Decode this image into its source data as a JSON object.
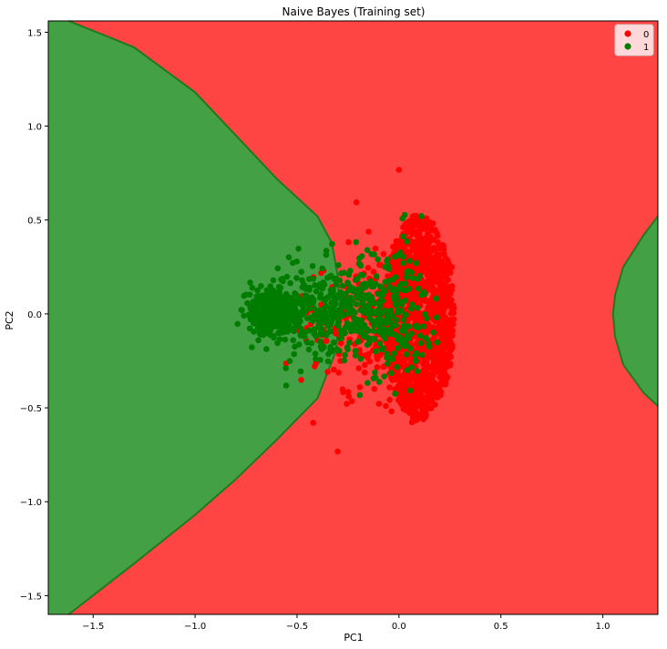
{
  "chart_data": {
    "type": "scatter",
    "title": "Naive Bayes (Training set)",
    "xlabel": "PC1",
    "ylabel": "PC2",
    "xlim": [
      -1.72,
      1.27
    ],
    "ylim": [
      -1.6,
      1.56
    ],
    "xticks": [
      -1.5,
      -1.0,
      -0.5,
      0.0,
      0.5,
      1.0
    ],
    "xtick_labels": [
      "−1.5",
      "−1.0",
      "−0.5",
      "0.0",
      "0.5",
      "1.0"
    ],
    "yticks": [
      -1.5,
      -1.0,
      -0.5,
      0.0,
      0.5,
      1.0,
      1.5
    ],
    "ytick_labels": [
      "−1.5",
      "−1.0",
      "−0.5",
      "0.0",
      "0.5",
      "1.0",
      "1.5"
    ],
    "grid": false,
    "legend_position": "top-right",
    "background_regions": {
      "class_0_color": "#ff4444",
      "class_1_color": "#44a044",
      "boundary_color": "#1f7a1f",
      "left_boundary": [
        [
          -1.62,
          1.56
        ],
        [
          -1.3,
          1.42
        ],
        [
          -1.0,
          1.18
        ],
        [
          -0.8,
          0.95
        ],
        [
          -0.6,
          0.72
        ],
        [
          -0.4,
          0.52
        ],
        [
          -0.33,
          0.38
        ],
        [
          -0.3,
          0.2
        ],
        [
          -0.29,
          0.0
        ],
        [
          -0.31,
          -0.2
        ],
        [
          -0.4,
          -0.45
        ],
        [
          -0.6,
          -0.67
        ],
        [
          -0.8,
          -0.88
        ],
        [
          -1.0,
          -1.07
        ],
        [
          -1.3,
          -1.33
        ],
        [
          -1.62,
          -1.6
        ]
      ],
      "right_boundary": [
        [
          1.27,
          0.52
        ],
        [
          1.2,
          0.42
        ],
        [
          1.1,
          0.25
        ],
        [
          1.06,
          0.1
        ],
        [
          1.05,
          0.0
        ],
        [
          1.06,
          -0.12
        ],
        [
          1.1,
          -0.27
        ],
        [
          1.2,
          -0.42
        ],
        [
          1.27,
          -0.49
        ]
      ]
    },
    "series": [
      {
        "name": "0",
        "color": "#ff0000",
        "clusters": [
          {
            "type": "ellipse",
            "cx": 0.1,
            "cy": -0.02,
            "rx": 0.17,
            "ry": 0.55,
            "n": 1300,
            "seed": 11
          },
          {
            "type": "gauss",
            "cx": -0.05,
            "cy": -0.05,
            "sx": 0.12,
            "sy": 0.22,
            "n": 220,
            "seed": 21
          },
          {
            "type": "gauss",
            "cx": -0.35,
            "cy": -0.1,
            "sx": 0.12,
            "sy": 0.16,
            "n": 55,
            "seed": 31
          }
        ]
      },
      {
        "name": "1",
        "color": "#007c00",
        "clusters": [
          {
            "type": "gauss",
            "cx": -0.62,
            "cy": 0.01,
            "sx": 0.06,
            "sy": 0.06,
            "n": 380,
            "seed": 41
          },
          {
            "type": "gauss",
            "cx": -0.3,
            "cy": 0.0,
            "sx": 0.17,
            "sy": 0.14,
            "n": 420,
            "seed": 51
          },
          {
            "type": "gauss",
            "cx": 0.0,
            "cy": 0.02,
            "sx": 0.1,
            "sy": 0.2,
            "n": 130,
            "seed": 61
          }
        ]
      }
    ]
  }
}
